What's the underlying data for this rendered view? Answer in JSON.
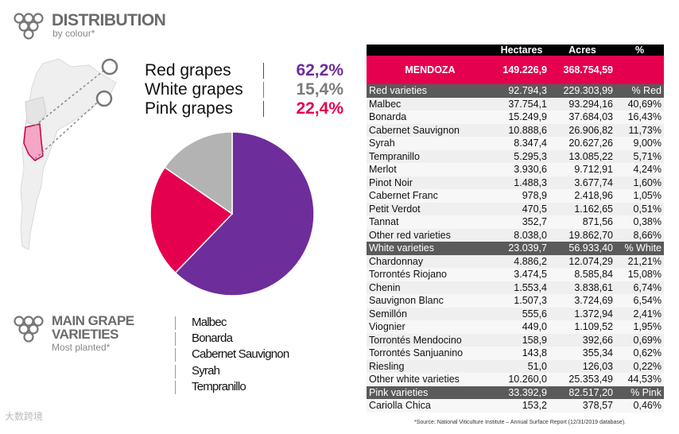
{
  "header": {
    "title": "DISTRIBUTION",
    "subtitle": "by colour*"
  },
  "legend": [
    {
      "label": "Red grapes",
      "value": "62,2%",
      "color": "#6d2d9a"
    },
    {
      "label": "White grapes",
      "value": "15,4%",
      "color": "#7b7b7b"
    },
    {
      "label": "Pink grapes",
      "value": "22,4%",
      "color": "#e5004f"
    }
  ],
  "chart_data": {
    "type": "pie",
    "title": "Distribution by colour",
    "labels": [
      "Red grapes",
      "White grapes",
      "Pink grapes"
    ],
    "values": [
      62.2,
      15.4,
      22.4
    ],
    "colors": [
      "#6d2d9a",
      "#b3b3b3",
      "#e5004f"
    ]
  },
  "varieties_section": {
    "title_line1": "MAIN GRAPE",
    "title_line2": "VARIETIES",
    "subtitle": "Most planted*",
    "items": [
      "Malbec",
      "Bonarda",
      "Cabernet Sauvignon",
      "Syrah",
      "Tempranillo"
    ]
  },
  "table": {
    "headers": [
      "",
      "Hectares",
      "Acres",
      "%"
    ],
    "region": {
      "name": "MENDOZA",
      "hectares": "149.226,9",
      "acres": "368.754,59",
      "pct": ""
    },
    "groups": [
      {
        "name": "Red varieties",
        "hectares": "92.794,3",
        "acres": "229.303,99",
        "pct": "% Red",
        "rows": [
          [
            "Malbec",
            "37.754,1",
            "93.294,16",
            "40,69%"
          ],
          [
            "Bonarda",
            "15.249,9",
            "37.684,03",
            "16,43%"
          ],
          [
            "Cabernet Sauvignon",
            "10.888,6",
            "26.906,82",
            "11,73%"
          ],
          [
            "Syrah",
            "8.347,4",
            "20.627,26",
            "9,00%"
          ],
          [
            "Tempranillo",
            "5.295,3",
            "13.085,22",
            "5,71%"
          ],
          [
            "Merlot",
            "3.930,6",
            "9.712,91",
            "4,24%"
          ],
          [
            "Pinot Noir",
            "1.488,3",
            "3.677,74",
            "1,60%"
          ],
          [
            "Cabernet Franc",
            "978,9",
            "2.418,96",
            "1,05%"
          ],
          [
            "Petit Verdot",
            "470,5",
            "1.162,65",
            "0,51%"
          ],
          [
            "Tannat",
            "352,7",
            "871,56",
            "0,38%"
          ],
          [
            "Other red varieties",
            "8.038,0",
            "19.862,70",
            "8,66%"
          ]
        ]
      },
      {
        "name": "White varieties",
        "hectares": "23.039,7",
        "acres": "56.933,40",
        "pct": "% White",
        "rows": [
          [
            "Chardonnay",
            "4.886,2",
            "12.074,29",
            "21,21%"
          ],
          [
            "Torrontés Riojano",
            "3.474,5",
            "8.585,84",
            "15,08%"
          ],
          [
            "Chenin",
            "1.553,4",
            "3.838,61",
            "6,74%"
          ],
          [
            "Sauvignon Blanc",
            "1.507,3",
            "3.724,69",
            "6,54%"
          ],
          [
            "Semillón",
            "555,6",
            "1.372,94",
            "2,41%"
          ],
          [
            "Viognier",
            "449,0",
            "1.109,52",
            "1,95%"
          ],
          [
            "Torrontés Mendocino",
            "158,9",
            "392,66",
            "0,69%"
          ],
          [
            "Torrontés Sanjuanino",
            "143,8",
            "355,34",
            "0,62%"
          ],
          [
            "Riesling",
            "51,0",
            "126,03",
            "0,22%"
          ],
          [
            "Other white varieties",
            "10.260,0",
            "25.353,49",
            "44,53%"
          ]
        ]
      },
      {
        "name": "Pink varieties",
        "hectares": "33.392,9",
        "acres": "82.517,20",
        "pct": "% Pink",
        "rows": [
          [
            "Cariolla Chica",
            "153,2",
            "378,57",
            "0,46%"
          ]
        ]
      }
    ]
  },
  "footnote": "*Source: National Viticulture Institute – Annual Surface Report (12/31/2019 database).",
  "watermark": "大数跨境"
}
